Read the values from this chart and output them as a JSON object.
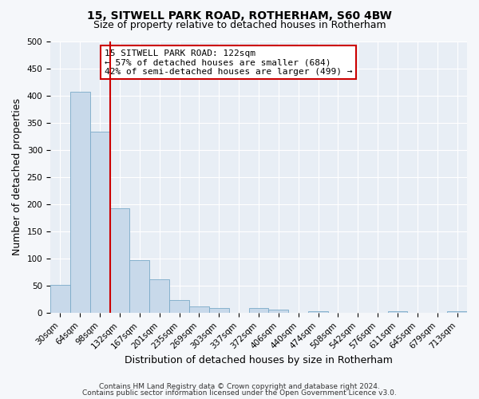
{
  "title": "15, SITWELL PARK ROAD, ROTHERHAM, S60 4BW",
  "subtitle": "Size of property relative to detached houses in Rotherham",
  "xlabel": "Distribution of detached houses by size in Rotherham",
  "ylabel": "Number of detached properties",
  "bin_labels": [
    "30sqm",
    "64sqm",
    "98sqm",
    "132sqm",
    "167sqm",
    "201sqm",
    "235sqm",
    "269sqm",
    "303sqm",
    "337sqm",
    "372sqm",
    "406sqm",
    "440sqm",
    "474sqm",
    "508sqm",
    "542sqm",
    "576sqm",
    "611sqm",
    "645sqm",
    "679sqm",
    "713sqm"
  ],
  "bar_values": [
    52,
    407,
    333,
    192,
    97,
    62,
    24,
    13,
    10,
    0,
    10,
    6,
    0,
    3,
    0,
    0,
    0,
    4,
    0,
    0,
    3
  ],
  "bar_color": "#c8d9ea",
  "bar_edge_color": "#7aaac8",
  "vline_position": 2.5,
  "vline_color": "#cc0000",
  "ylim": [
    0,
    500
  ],
  "yticks": [
    0,
    50,
    100,
    150,
    200,
    250,
    300,
    350,
    400,
    450,
    500
  ],
  "annotation_title": "15 SITWELL PARK ROAD: 122sqm",
  "annotation_line1": "← 57% of detached houses are smaller (684)",
  "annotation_line2": "42% of semi-detached houses are larger (499) →",
  "annotation_box_facecolor": "#ffffff",
  "annotation_box_edgecolor": "#cc0000",
  "footer_line1": "Contains HM Land Registry data © Crown copyright and database right 2024.",
  "footer_line2": "Contains public sector information licensed under the Open Government Licence v3.0.",
  "plot_bg_color": "#e8eef5",
  "fig_bg_color": "#f5f7fa",
  "grid_color": "#ffffff",
  "title_fontsize": 10,
  "subtitle_fontsize": 9,
  "axis_label_fontsize": 9,
  "tick_fontsize": 7.5,
  "footer_fontsize": 6.5,
  "annotation_fontsize": 8
}
